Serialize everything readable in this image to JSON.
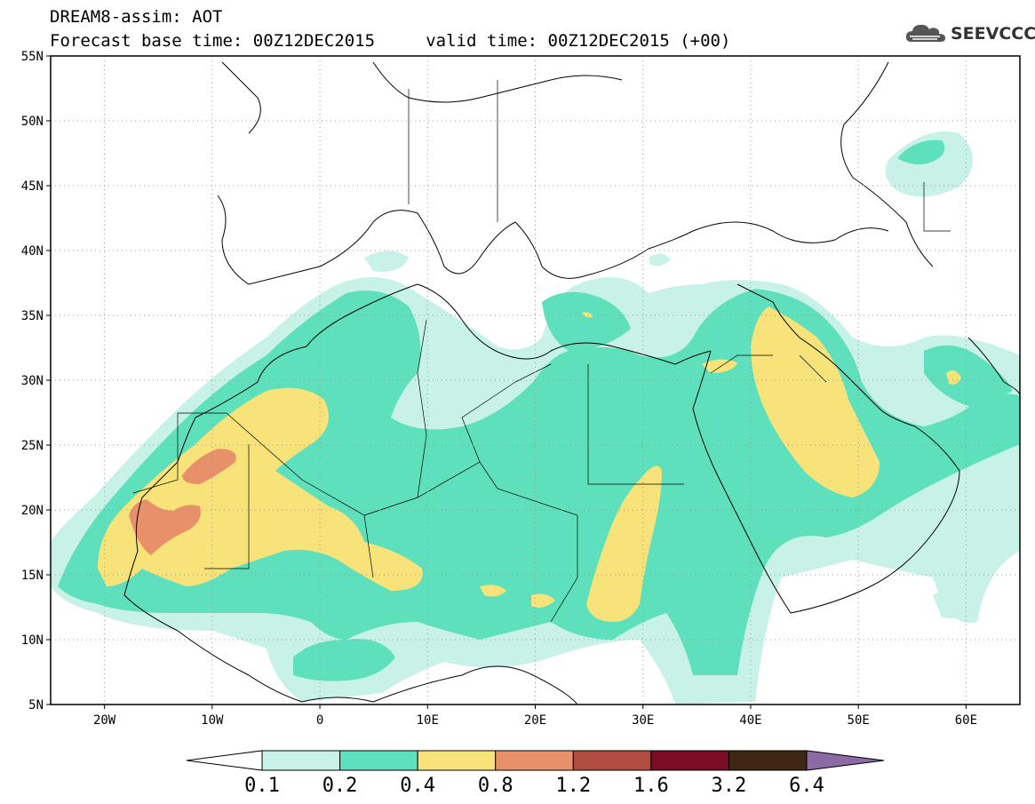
{
  "header": {
    "title_line1": "DREAM8-assim: AOT",
    "title_line2": "Forecast base time: 00Z12DEC2015     valid time: 00Z12DEC2015 (+00)",
    "logo_text": "SEEVCCC",
    "logo_icon": "cloud-icon"
  },
  "map": {
    "lon_range": [
      -25,
      65
    ],
    "lat_range": [
      5,
      55
    ],
    "lat_ticks": [
      {
        "value": 55,
        "label": "55N"
      },
      {
        "value": 50,
        "label": "50N"
      },
      {
        "value": 45,
        "label": "45N"
      },
      {
        "value": 40,
        "label": "40N"
      },
      {
        "value": 35,
        "label": "35N"
      },
      {
        "value": 30,
        "label": "30N"
      },
      {
        "value": 25,
        "label": "25N"
      },
      {
        "value": 20,
        "label": "20N"
      },
      {
        "value": 15,
        "label": "15N"
      },
      {
        "value": 10,
        "label": "10N"
      },
      {
        "value": 5,
        "label": "5N"
      }
    ],
    "lon_ticks": [
      {
        "value": -20,
        "label": "20W"
      },
      {
        "value": -10,
        "label": "10W"
      },
      {
        "value": 0,
        "label": "0"
      },
      {
        "value": 10,
        "label": "10E"
      },
      {
        "value": 20,
        "label": "20E"
      },
      {
        "value": 30,
        "label": "30E"
      },
      {
        "value": 40,
        "label": "40E"
      },
      {
        "value": 50,
        "label": "50E"
      },
      {
        "value": 60,
        "label": "60E"
      }
    ],
    "grid": "dotted"
  },
  "colorbar": {
    "labels": [
      "0.1",
      "0.2",
      "0.4",
      "0.8",
      "1.2",
      "1.6",
      "3.2",
      "6.4"
    ],
    "colors": [
      "#ffffff",
      "#c8f2e8",
      "#5fe0bc",
      "#f7e37a",
      "#e8906a",
      "#b04c40",
      "#7a0c26",
      "#3e2814",
      "#8c6aa6"
    ]
  }
}
